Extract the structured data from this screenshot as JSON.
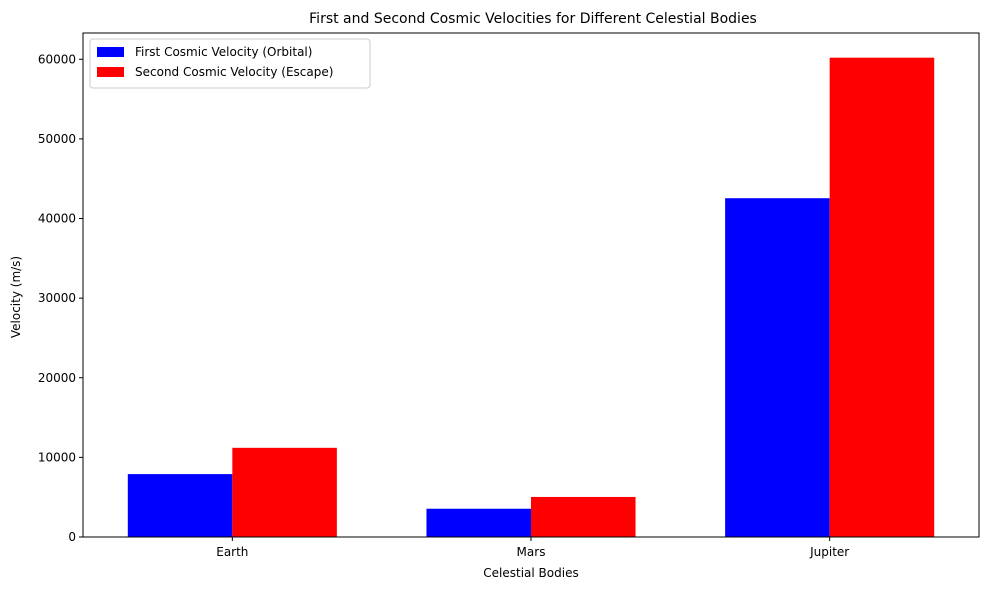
{
  "chart_data": {
    "type": "bar",
    "title": "First and Second Cosmic Velocities for Different Celestial Bodies",
    "xlabel": "Celestial Bodies",
    "ylabel": "Velocity (m/s)",
    "categories": [
      "Earth",
      "Mars",
      "Jupiter"
    ],
    "series": [
      {
        "name": "First Cosmic Velocity (Orbital)",
        "color": "#0000ff",
        "values": [
          7900,
          3550,
          42550
        ]
      },
      {
        "name": "Second Cosmic Velocity (Escape)",
        "color": "#ff0000",
        "values": [
          11200,
          5030,
          60200
        ]
      }
    ],
    "ylim": [
      0,
      63300
    ],
    "yticks": [
      0,
      10000,
      20000,
      30000,
      40000,
      50000,
      60000
    ],
    "grid": false,
    "legend_position": "top-left"
  }
}
